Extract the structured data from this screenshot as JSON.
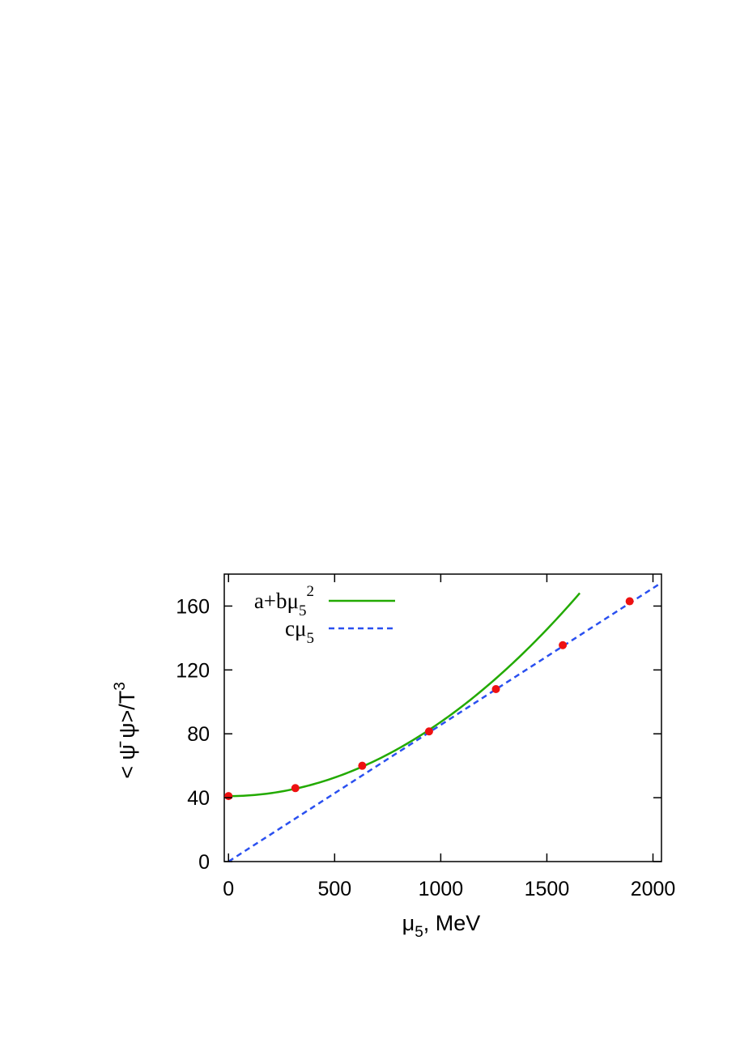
{
  "chart_data": {
    "type": "line",
    "xlabel": {
      "mu": "μ",
      "sub": "5",
      "rest": ", MeV"
    },
    "ylabel": {
      "main": "< ψ̄ ψ>/T",
      "sup": "3"
    },
    "xlim": [
      -20,
      2040
    ],
    "ylim": [
      0,
      180
    ],
    "xticks": [
      0,
      500,
      1000,
      1500,
      2000
    ],
    "xtick_labels": [
      "0",
      "500",
      "1000",
      "1500",
      "2000"
    ],
    "yticks": [
      0,
      40,
      80,
      120,
      160
    ],
    "ytick_labels": [
      "0",
      "40",
      "80",
      "120",
      "160"
    ],
    "grid": false,
    "legend_position": "top-left",
    "series": [
      {
        "name": "a+bμ52",
        "legend": {
          "base": "a+bμ",
          "sub": "5",
          "sup": "2"
        },
        "kind": "fit-quadratic",
        "style": "solid",
        "color": "#22aa00",
        "params": {
          "a": 41,
          "b": 4.64e-05
        },
        "x_range": [
          0,
          1655
        ]
      },
      {
        "name": "cμ5",
        "legend": {
          "base": "cμ",
          "sub": "5",
          "sup": ""
        },
        "kind": "fit-linear",
        "style": "dashed",
        "color": "#2a50f0",
        "params": {
          "c": 0.0856
        },
        "x_range": [
          0,
          2030
        ]
      },
      {
        "name": "data",
        "kind": "points",
        "color": "#ee1111",
        "x": [
          0,
          315,
          630,
          945,
          1260,
          1575,
          1890
        ],
        "y": [
          41,
          46,
          60,
          81.5,
          108,
          135.5,
          163
        ]
      }
    ]
  }
}
